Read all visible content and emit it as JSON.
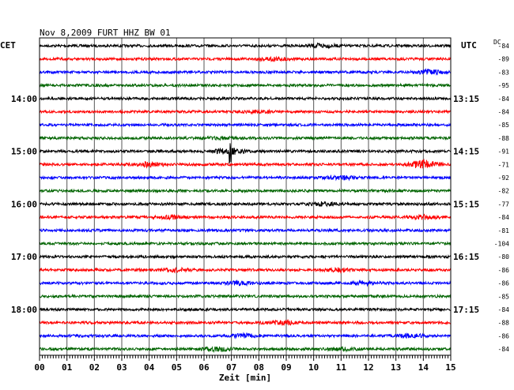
{
  "header": {
    "title": "Nov 8,2009   FURT HHZ BW 01",
    "left_zone": "CET",
    "right_zone": "UTC",
    "dc_label": "DC"
  },
  "chart_data": {
    "type": "line",
    "title": "Nov 8,2009   FURT HHZ BW 01",
    "xlabel": "Zeit [min]",
    "xlim": [
      0,
      15
    ],
    "x_ticks": [
      "00",
      "01",
      "02",
      "03",
      "04",
      "05",
      "06",
      "07",
      "08",
      "09",
      "10",
      "11",
      "12",
      "13",
      "14",
      "15"
    ],
    "trace_colors": [
      "#000000",
      "#ff0000",
      "#0000ff",
      "#006400"
    ],
    "left_hour_labels": [
      {
        "trace_index": 4,
        "label": "14:00"
      },
      {
        "trace_index": 8,
        "label": "15:00"
      },
      {
        "trace_index": 12,
        "label": "16:00"
      },
      {
        "trace_index": 16,
        "label": "17:00"
      },
      {
        "trace_index": 20,
        "label": "18:00"
      }
    ],
    "right_hour_labels": [
      {
        "trace_index": 4,
        "label": "13:15"
      },
      {
        "trace_index": 8,
        "label": "14:15"
      },
      {
        "trace_index": 12,
        "label": "15:15"
      },
      {
        "trace_index": 16,
        "label": "16:15"
      },
      {
        "trace_index": 20,
        "label": "17:15"
      }
    ],
    "dc_offsets": [
      "-84",
      "-89",
      "-83",
      "-95",
      "-84",
      "-84",
      "-85",
      "-88",
      "-91",
      "-71",
      "-92",
      "-82",
      "-77",
      "-84",
      "-81",
      "-104",
      "-80",
      "-86",
      "-86",
      "-85",
      "-84",
      "-88",
      "-86",
      "-84"
    ],
    "trace_count": 24
  }
}
